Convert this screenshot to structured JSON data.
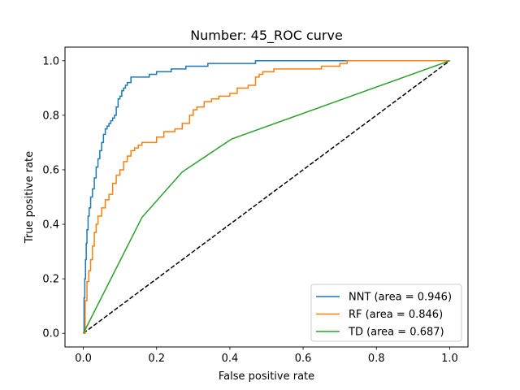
{
  "chart_data": {
    "type": "line",
    "title": "Number: 45_ROC curve",
    "xlabel": "False positive rate",
    "ylabel": "True positive rate",
    "xlim": [
      -0.05,
      1.05
    ],
    "ylim": [
      -0.05,
      1.05
    ],
    "xticks": [
      "0.0",
      "0.2",
      "0.4",
      "0.6",
      "0.8",
      "1.0"
    ],
    "yticks": [
      "0.0",
      "0.2",
      "0.4",
      "0.6",
      "0.8",
      "1.0"
    ],
    "grid": false,
    "legend_position": "lower-right",
    "diagonal": {
      "x": [
        0,
        1
      ],
      "y": [
        0,
        1
      ],
      "color": "#000000",
      "style": "dashed"
    },
    "series": [
      {
        "name": "NNT (area = 0.946)",
        "color": "#1f77b4",
        "step": true,
        "x": [
          0,
          0.002,
          0.004,
          0.006,
          0.008,
          0.01,
          0.013,
          0.016,
          0.02,
          0.025,
          0.03,
          0.035,
          0.04,
          0.045,
          0.05,
          0.055,
          0.06,
          0.065,
          0.07,
          0.075,
          0.08,
          0.085,
          0.09,
          0.095,
          0.1,
          0.105,
          0.11,
          0.115,
          0.12,
          0.13,
          0.14,
          0.17,
          0.18,
          0.2,
          0.22,
          0.24,
          0.28,
          0.34,
          0.47,
          0.71,
          1.0
        ],
        "y": [
          0,
          0.13,
          0.2,
          0.27,
          0.33,
          0.38,
          0.43,
          0.46,
          0.5,
          0.53,
          0.57,
          0.61,
          0.64,
          0.67,
          0.7,
          0.73,
          0.75,
          0.76,
          0.77,
          0.78,
          0.79,
          0.8,
          0.83,
          0.86,
          0.87,
          0.89,
          0.9,
          0.91,
          0.92,
          0.94,
          0.94,
          0.94,
          0.95,
          0.96,
          0.96,
          0.97,
          0.98,
          0.99,
          1.0,
          1.0,
          1.0
        ]
      },
      {
        "name": "RF (area = 0.846)",
        "color": "#ff7f0e",
        "step": true,
        "x": [
          0,
          0.005,
          0.01,
          0.015,
          0.02,
          0.025,
          0.03,
          0.035,
          0.04,
          0.05,
          0.06,
          0.07,
          0.08,
          0.09,
          0.1,
          0.11,
          0.12,
          0.13,
          0.14,
          0.15,
          0.16,
          0.17,
          0.2,
          0.22,
          0.25,
          0.27,
          0.29,
          0.3,
          0.31,
          0.33,
          0.35,
          0.37,
          0.4,
          0.42,
          0.45,
          0.47,
          0.48,
          0.49,
          0.5,
          0.52,
          0.55,
          0.6,
          0.65,
          0.7,
          0.72,
          1.0
        ],
        "y": [
          0,
          0.12,
          0.19,
          0.23,
          0.27,
          0.32,
          0.37,
          0.4,
          0.43,
          0.46,
          0.49,
          0.51,
          0.55,
          0.58,
          0.6,
          0.63,
          0.65,
          0.67,
          0.68,
          0.69,
          0.7,
          0.7,
          0.72,
          0.74,
          0.75,
          0.77,
          0.8,
          0.82,
          0.83,
          0.85,
          0.86,
          0.87,
          0.88,
          0.9,
          0.91,
          0.94,
          0.95,
          0.96,
          0.96,
          0.97,
          0.97,
          0.97,
          0.98,
          0.99,
          1.0,
          1.0
        ]
      },
      {
        "name": "TD (area = 0.687)",
        "color": "#2ca02c",
        "step": false,
        "x": [
          0,
          0.16,
          0.27,
          0.405,
          1.0
        ],
        "y": [
          0,
          0.425,
          0.592,
          0.713,
          1.0
        ]
      }
    ]
  }
}
